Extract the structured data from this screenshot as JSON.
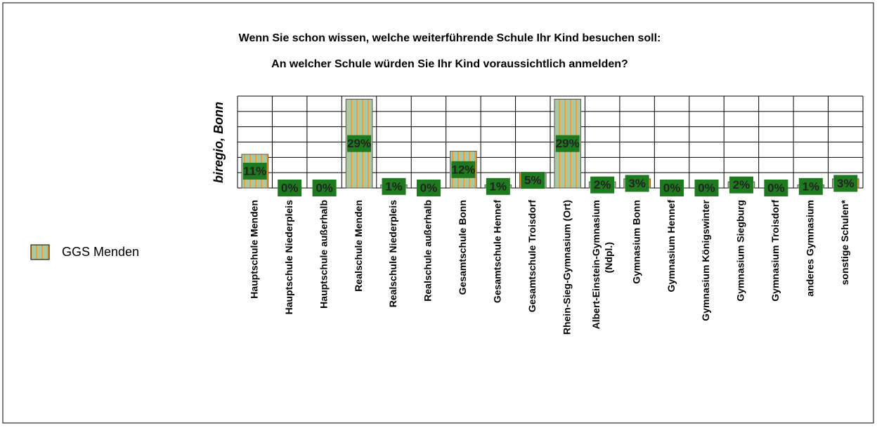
{
  "chart_data": {
    "type": "bar",
    "title": "Wenn Sie schon wissen, welche weiterführende Schule Ihr Kind besuchen soll:",
    "subtitle": "An welcher Schule würden Sie Ihr Kind voraussichtlich anmelden?",
    "y_label": "biregio, Bonn",
    "categories": [
      "Hauptschule Menden",
      "Hauptschule Niederpleis",
      "Hauptschule außerhalb",
      "Realschule Menden",
      "Realschule Niederpleis",
      "Realschule außerhalb",
      "Gesamtschule Bonn",
      "Gesamtschule Hennef",
      "Gesamtschule Troisdorf",
      "Rhein-Sieg-Gymnasium (Ort)",
      "Albert-Einstein-Gymnasium (Ndpl.)",
      "Gymnasium Bonn",
      "Gymnasium Hennef",
      "Gymnasium Königswinter",
      "Gymnasium Siegburg",
      "Gymnasium Troisdorf",
      "anderes Gymnasium",
      "sonstige Schulen*"
    ],
    "series": [
      {
        "name": "GGS Menden",
        "color": "#a9c9a4",
        "values": [
          11,
          0,
          0,
          29,
          1,
          0,
          12,
          1,
          5,
          29,
          2,
          3,
          0,
          0,
          2,
          0,
          1,
          3
        ],
        "value_labels": [
          "11%",
          "0%",
          "0%",
          "29%",
          "1%",
          "0%",
          "12%",
          "1%",
          "5%",
          "29%",
          "2%",
          "3%",
          "0%",
          "0%",
          "2%",
          "0%",
          "1%",
          "3%"
        ]
      }
    ],
    "ylim": [
      0,
      30
    ],
    "yticks": [
      0,
      5,
      10,
      15,
      20,
      25,
      30
    ],
    "grid": true,
    "legend": "left"
  }
}
